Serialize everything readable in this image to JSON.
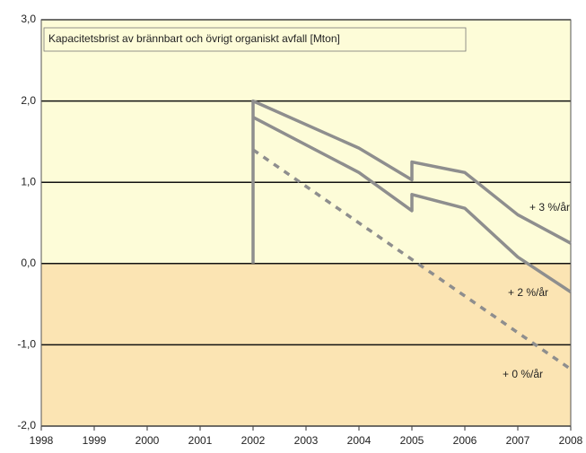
{
  "chart_data": {
    "type": "line",
    "title": "Kapacitetsbrist av brännbart och övrigt organiskt avfall [Mton]",
    "xlim": [
      1998,
      2008
    ],
    "xticks": [
      1998,
      1999,
      2000,
      2001,
      2002,
      2003,
      2004,
      2005,
      2006,
      2007,
      2008
    ],
    "ylim": [
      -2.0,
      3.0
    ],
    "yticks": [
      {
        "value": -2.0,
        "label": "-2,0"
      },
      {
        "value": -1.0,
        "label": "-1,0"
      },
      {
        "value": 0.0,
        "label": "0,0"
      },
      {
        "value": 1.0,
        "label": "1,0"
      },
      {
        "value": 2.0,
        "label": "2,0"
      },
      {
        "value": 3.0,
        "label": "3,0"
      }
    ],
    "grid": true,
    "series": [
      {
        "name": "+ 3 %/år",
        "color": "#8e8e8e",
        "dashed": false,
        "x": [
          2002,
          2002,
          2004,
          2005,
          2005,
          2006,
          2007,
          2008
        ],
        "values": [
          0.0,
          2.0,
          1.42,
          1.03,
          1.25,
          1.12,
          0.6,
          0.25
        ]
      },
      {
        "name": "+ 2 %/år",
        "color": "#8e8e8e",
        "dashed": false,
        "x": [
          2002,
          2004,
          2005,
          2005,
          2006,
          2007,
          2008
        ],
        "values": [
          1.8,
          1.12,
          0.65,
          0.85,
          0.68,
          0.08,
          -0.35
        ]
      },
      {
        "name": "+ 0 %/år",
        "color": "#8e8e8e",
        "dashed": true,
        "x": [
          2002,
          2008
        ],
        "values": [
          1.4,
          -1.3
        ]
      }
    ]
  }
}
